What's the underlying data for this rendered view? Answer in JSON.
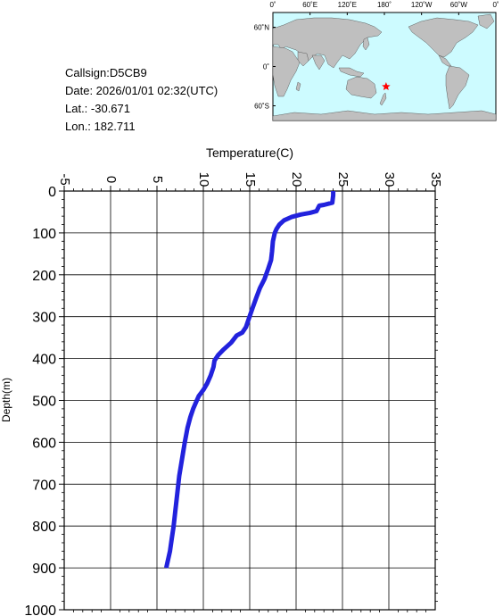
{
  "info": {
    "callsign": "Callsign:D5CB9",
    "date": "Date:  2026/01/01 02:32(UTC)",
    "lat": "Lat.:  -30.671",
    "lon": "Lon.:  182.711"
  },
  "map": {
    "top_tick_labels": [
      "0˚",
      "60˚E",
      "120˚E",
      "180˚",
      "120˚W",
      "60˚W",
      "0˚"
    ],
    "side_tick_labels": [
      "60˚N",
      "0˚",
      "60˚S"
    ],
    "ocean_color": "#cdfbff",
    "land_color": "#bfbfbf",
    "marker": {
      "lat": -30.671,
      "lon": 182.711,
      "symbol": "star",
      "color": "#ff0000"
    }
  },
  "chart_data": {
    "type": "line",
    "xlabel": "Temperature(C)",
    "ylabel": "Depth(m)",
    "xlim": [
      -5,
      35
    ],
    "ylim": [
      1000,
      0
    ],
    "x_ticks": [
      -5,
      0,
      5,
      10,
      15,
      20,
      25,
      30,
      35
    ],
    "y_ticks": [
      0,
      100,
      200,
      300,
      400,
      500,
      600,
      700,
      800,
      900,
      1000
    ],
    "x_tick_labels": [
      "-5",
      "0",
      "5",
      "10",
      "15",
      "20",
      "25",
      "30",
      "35"
    ],
    "y_tick_labels": [
      "0",
      "100",
      "200",
      "300",
      "400",
      "500",
      "600",
      "700",
      "800",
      "900",
      "1000"
    ],
    "grid": true,
    "line_color": "#2222dd",
    "series": [
      {
        "points": [
          [
            24.0,
            0
          ],
          [
            24.0,
            10
          ],
          [
            23.9,
            28
          ],
          [
            23.0,
            33
          ],
          [
            22.5,
            35
          ],
          [
            22.2,
            48
          ],
          [
            21.5,
            52
          ],
          [
            20.5,
            56
          ],
          [
            19.5,
            62
          ],
          [
            18.7,
            70
          ],
          [
            18.2,
            80
          ],
          [
            17.9,
            90
          ],
          [
            17.7,
            100
          ],
          [
            17.5,
            120
          ],
          [
            17.4,
            145
          ],
          [
            17.3,
            165
          ],
          [
            17.0,
            185
          ],
          [
            16.6,
            210
          ],
          [
            16.1,
            232
          ],
          [
            15.7,
            255
          ],
          [
            15.3,
            280
          ],
          [
            14.9,
            305
          ],
          [
            14.6,
            325
          ],
          [
            14.2,
            338
          ],
          [
            13.6,
            345
          ],
          [
            13.0,
            362
          ],
          [
            12.2,
            378
          ],
          [
            11.6,
            392
          ],
          [
            11.2,
            405
          ],
          [
            11.1,
            420
          ],
          [
            10.8,
            440
          ],
          [
            10.4,
            460
          ],
          [
            10.0,
            475
          ],
          [
            9.5,
            490
          ],
          [
            9.3,
            500
          ],
          [
            8.9,
            520
          ],
          [
            8.6,
            540
          ],
          [
            8.3,
            565
          ],
          [
            8.0,
            600
          ],
          [
            7.7,
            640
          ],
          [
            7.4,
            680
          ],
          [
            7.2,
            720
          ],
          [
            7.0,
            760
          ],
          [
            6.8,
            800
          ],
          [
            6.6,
            830
          ],
          [
            6.4,
            860
          ],
          [
            6.2,
            880
          ],
          [
            6.0,
            900
          ]
        ]
      }
    ]
  }
}
